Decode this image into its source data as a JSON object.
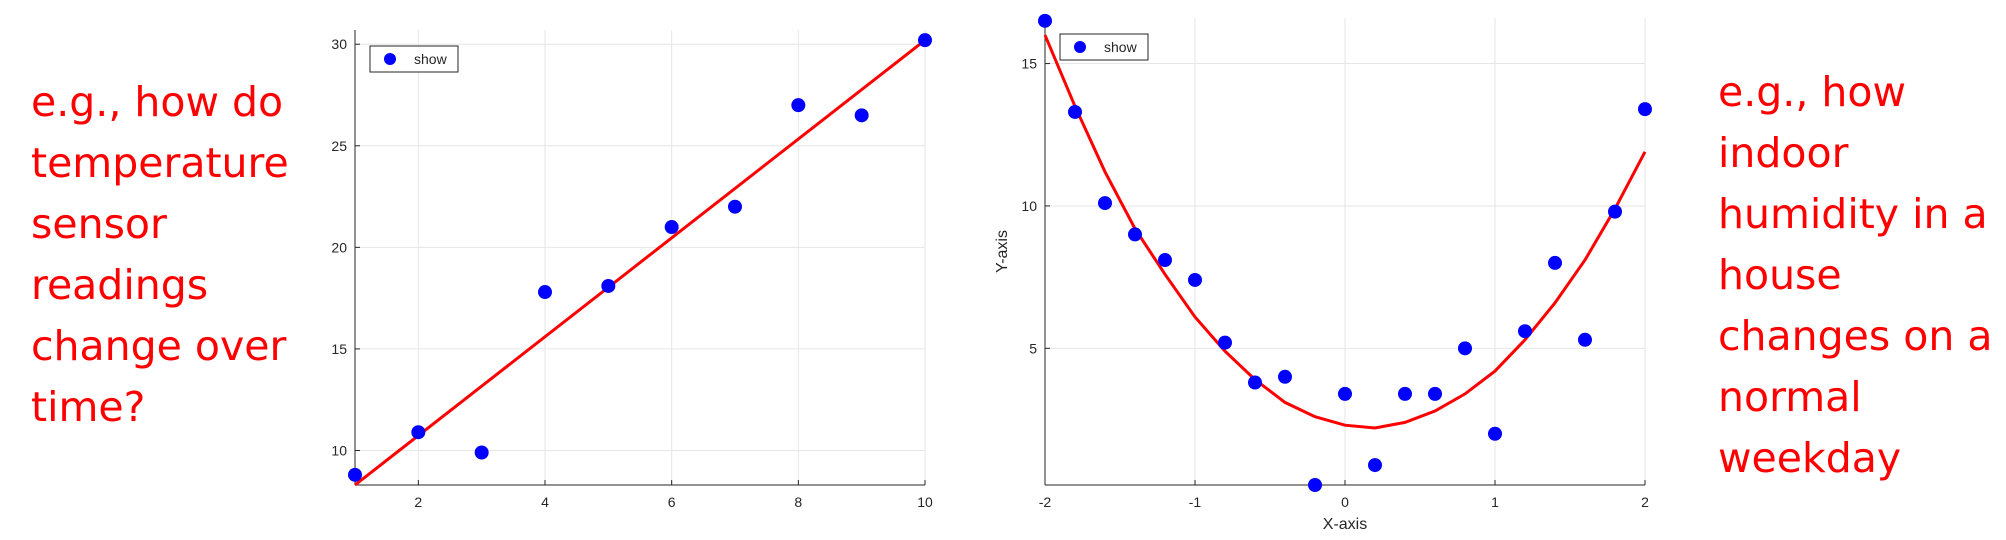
{
  "captions": {
    "left": "e.g., how do temperature sensor readings change over time?",
    "right": "e.g., how indoor humidity in a house changes on a normal weekday"
  },
  "colors": {
    "points": "#0000ff",
    "fit_line": "#ff0000",
    "caption": "#ff0000",
    "grid": "#e6e6e6"
  },
  "chart_data": [
    {
      "type": "scatter",
      "title": "",
      "xlabel": "",
      "ylabel": "",
      "xlim": [
        1,
        10
      ],
      "ylim": [
        8.3,
        30.7
      ],
      "xticks": [
        2,
        4,
        6,
        8,
        10
      ],
      "yticks": [
        10,
        15,
        20,
        25,
        30
      ],
      "grid": true,
      "legend": {
        "placement": "top-left",
        "entries": [
          "show"
        ]
      },
      "series": [
        {
          "name": "show",
          "x": [
            1,
            2,
            3,
            4,
            5,
            6,
            7,
            8,
            9,
            10
          ],
          "y": [
            8.8,
            10.9,
            9.9,
            17.8,
            18.1,
            21.0,
            22.0,
            27.0,
            26.5,
            30.2
          ]
        }
      ],
      "fit_line": {
        "x": [
          1,
          10
        ],
        "y": [
          8.3,
          30.2
        ]
      }
    },
    {
      "type": "scatter",
      "title": "",
      "xlabel": "X-axis",
      "ylabel": "Y-axis",
      "xlim": [
        -2,
        2
      ],
      "ylim": [
        0.2,
        16.6
      ],
      "xticks": [
        -2,
        -1,
        0,
        1,
        2
      ],
      "yticks": [
        5,
        10,
        15
      ],
      "grid": true,
      "legend": {
        "placement": "top-left",
        "entries": [
          "show"
        ]
      },
      "series": [
        {
          "name": "show",
          "x": [
            -2.0,
            -1.8,
            -1.6,
            -1.4,
            -1.2,
            -1.0,
            -0.8,
            -0.6,
            -0.4,
            -0.2,
            0.0,
            0.2,
            0.4,
            0.6,
            0.8,
            1.0,
            1.2,
            1.4,
            1.6,
            1.8,
            2.0
          ],
          "y": [
            16.5,
            13.3,
            10.1,
            9.0,
            8.1,
            7.4,
            5.2,
            3.8,
            4.0,
            0.2,
            3.4,
            0.9,
            3.4,
            3.4,
            5.0,
            2.0,
            5.6,
            8.0,
            5.3,
            9.8,
            13.4
          ]
        }
      ],
      "fit_line": {
        "x": [
          -2.0,
          -1.8,
          -1.6,
          -1.4,
          -1.2,
          -1.0,
          -0.8,
          -0.6,
          -0.4,
          -0.2,
          0.0,
          0.2,
          0.4,
          0.6,
          0.8,
          1.0,
          1.2,
          1.4,
          1.6,
          1.8,
          2.0
        ],
        "y": [
          16.0,
          13.5,
          11.2,
          9.2,
          7.6,
          6.1,
          4.9,
          3.9,
          3.1,
          2.6,
          2.3,
          2.2,
          2.4,
          2.8,
          3.4,
          4.2,
          5.3,
          6.6,
          8.1,
          9.9,
          11.9
        ]
      }
    }
  ]
}
